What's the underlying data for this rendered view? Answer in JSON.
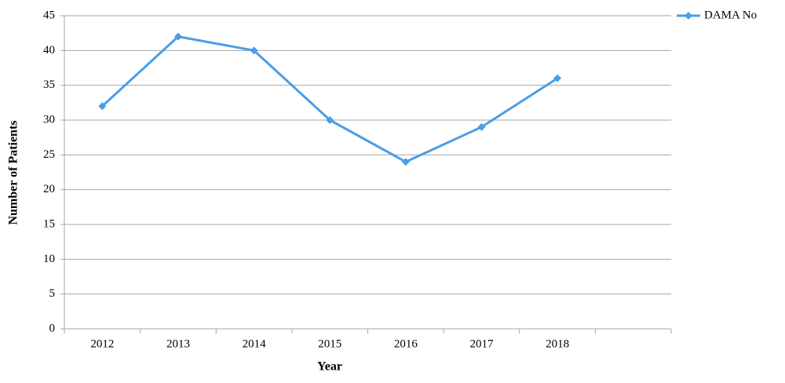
{
  "chart_data": {
    "type": "line",
    "x_label": "Year",
    "y_label": "Number of Patients",
    "categories": [
      "2012",
      "2013",
      "2014",
      "2015",
      "2016",
      "2017",
      "2018",
      null
    ],
    "series": [
      {
        "name": "DAMA No",
        "color": "#4a9ee6",
        "values": [
          32,
          42,
          40,
          30,
          24,
          29,
          36,
          null
        ]
      }
    ],
    "ylim": [
      0,
      45
    ],
    "yticks": [
      0,
      5,
      10,
      15,
      20,
      25,
      30,
      35,
      40,
      45
    ],
    "grid": true,
    "legend": "top-right"
  }
}
